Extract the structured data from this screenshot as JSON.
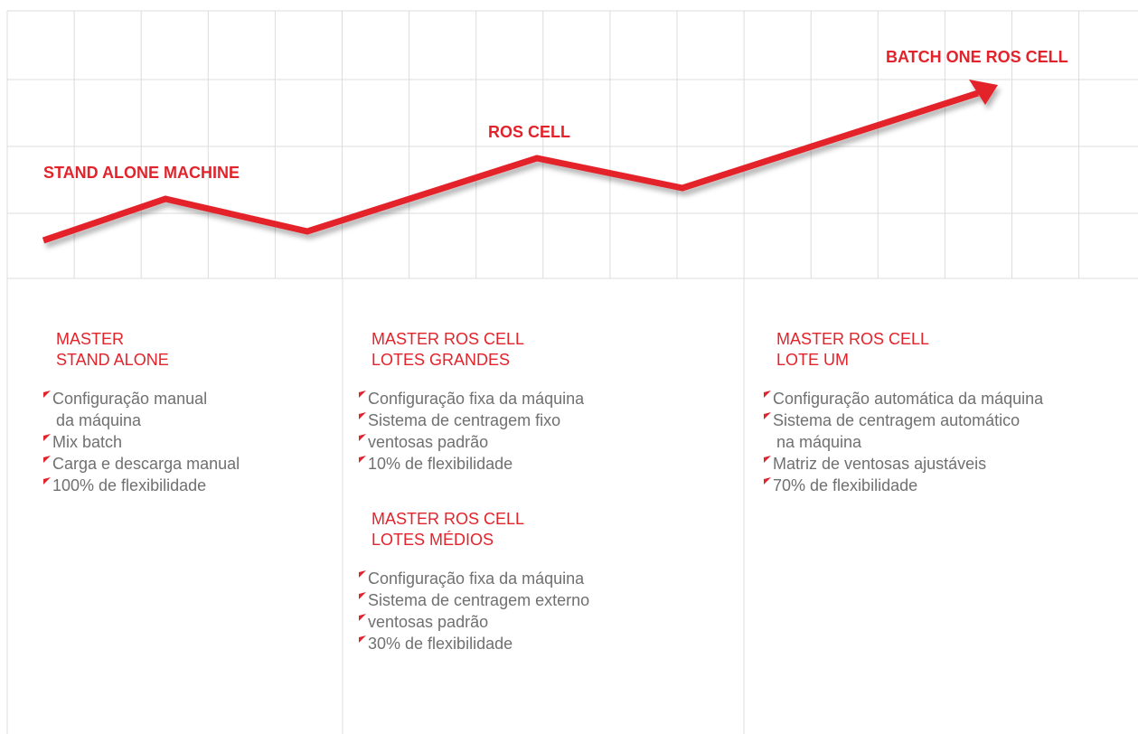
{
  "chart_labels": [
    "STAND ALONE MACHINE",
    "ROS CELL",
    "BATCH ONE ROS CELL"
  ],
  "columns": [
    {
      "sections": [
        {
          "title": [
            "MASTER",
            "STAND ALONE"
          ],
          "items": [
            [
              "Configuração manual",
              "da máquina"
            ],
            [
              "Mix batch"
            ],
            [
              "Carga e descarga manual"
            ],
            [
              "100% de flexibilidade"
            ]
          ]
        }
      ]
    },
    {
      "sections": [
        {
          "title": [
            "MASTER ROS CELL",
            "LOTES GRANDES"
          ],
          "items": [
            [
              "Configuração fixa da máquina"
            ],
            [
              "Sistema de centragem fixo"
            ],
            [
              "ventosas padrão"
            ],
            [
              "10% de flexibilidade"
            ]
          ]
        },
        {
          "title": [
            "MASTER ROS CELL",
            "LOTES MÉDIOS"
          ],
          "items": [
            [
              "Configuração fixa da máquina"
            ],
            [
              "Sistema de centragem externo"
            ],
            [
              "ventosas padrão"
            ],
            [
              "30% de flexibilidade"
            ]
          ]
        }
      ]
    },
    {
      "sections": [
        {
          "title": [
            "MASTER ROS CELL",
            "LOTE UM"
          ],
          "items": [
            [
              "Configuração automática da máquina"
            ],
            [
              "Sistema de centragem automático",
              "na máquina"
            ],
            [
              "Matriz de ventosas ajustáveis"
            ],
            [
              "70% de flexibilidade"
            ]
          ]
        }
      ]
    }
  ]
}
